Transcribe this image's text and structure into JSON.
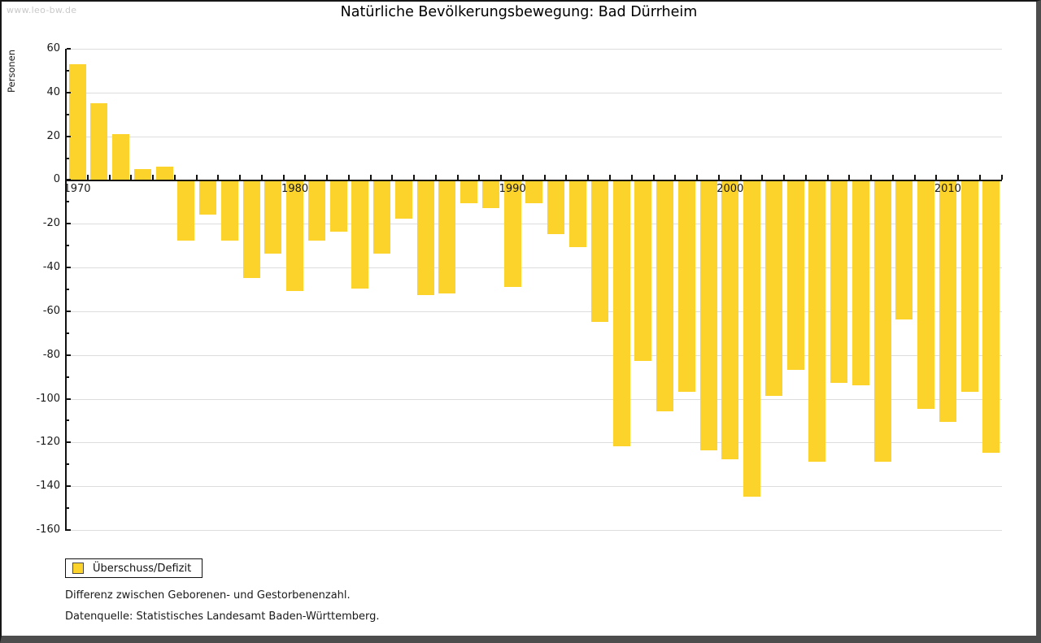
{
  "window": {
    "watermark": "www.leo-bw.de"
  },
  "title": "Natürliche Bevölkerungsbewegung: Bad Dürrheim",
  "chart_data": {
    "type": "bar",
    "title": "Natürliche Bevölkerungsbewegung: Bad Dürrheim",
    "xlabel": "",
    "ylabel": "Personen",
    "ylim": [
      -160,
      60
    ],
    "grid": true,
    "legend_position": "bottom-left",
    "series_name": "Überschuss/Defizit",
    "bar_color": "#FCD32B",
    "categories": [
      1970,
      1971,
      1972,
      1973,
      1974,
      1975,
      1976,
      1977,
      1978,
      1979,
      1980,
      1981,
      1982,
      1983,
      1984,
      1985,
      1986,
      1987,
      1988,
      1989,
      1990,
      1991,
      1992,
      1993,
      1994,
      1995,
      1996,
      1997,
      1998,
      1999,
      2000,
      2001,
      2002,
      2003,
      2004,
      2005,
      2006,
      2007,
      2008,
      2009,
      2010,
      2011,
      2012
    ],
    "values": [
      53,
      35,
      21,
      5,
      6,
      -27,
      -15,
      -27,
      -44,
      -33,
      -50,
      -27,
      -23,
      -49,
      -33,
      -17,
      -52,
      -51,
      -10,
      -12,
      -48,
      -10,
      -24,
      -30,
      -64,
      -121,
      -82,
      -105,
      -96,
      -123,
      -127,
      -144,
      -98,
      -86,
      -128,
      -92,
      -93,
      -128,
      -63,
      -104,
      -110,
      -96,
      -124
    ],
    "y_tick_values": [
      60,
      40,
      20,
      0,
      -20,
      -40,
      -60,
      -80,
      -100,
      -120,
      -140,
      -160
    ],
    "y_tick_labels": [
      "60",
      "40",
      "20",
      "0",
      "-20",
      "-40",
      "-60",
      "-80",
      "-100",
      "-120",
      "-140",
      "-160"
    ],
    "x_tick_years": [
      1970,
      1980,
      1990,
      2000,
      2010
    ],
    "x_tick_labels": [
      "1970",
      "1980",
      "1990",
      "2000",
      "2010"
    ]
  },
  "legend": {
    "label": "Überschuss/Defizit",
    "swatch_color": "#FCD32B"
  },
  "footnotes": [
    "Differenz zwischen Geborenen- und Gestorbenenzahl.",
    "Datenquelle: Statistisches Landesamt Baden-Württemberg."
  ]
}
